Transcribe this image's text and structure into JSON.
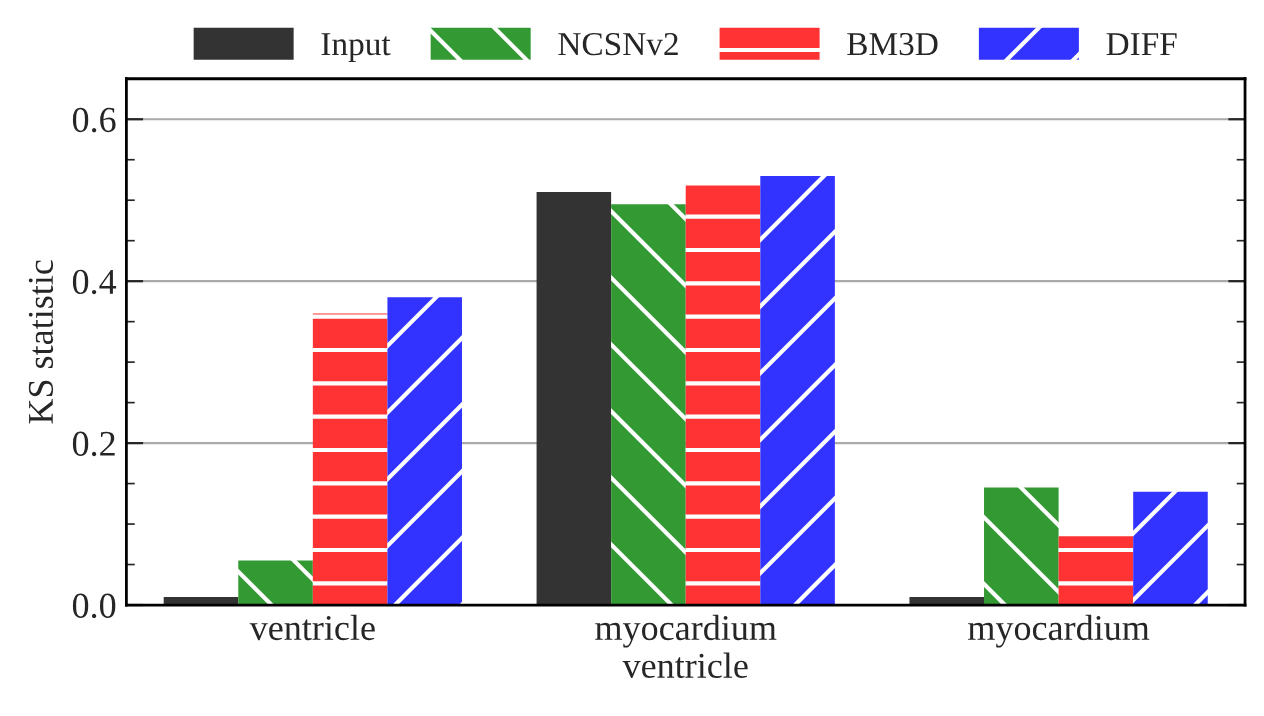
{
  "chart_data": {
    "type": "bar",
    "ylabel": "KS statistic",
    "categories": [
      "ventricle",
      "myocardium\nventricle",
      "myocardium"
    ],
    "series": [
      {
        "name": "Input",
        "color": "#333333",
        "values": [
          0.01,
          0.51,
          0.01
        ]
      },
      {
        "name": "NCSNv2",
        "color": "#339933",
        "values": [
          0.055,
          0.495,
          0.145
        ]
      },
      {
        "name": "BM3D",
        "color": "#ff3333",
        "values": [
          0.36,
          0.52,
          0.085
        ]
      },
      {
        "name": "DIFF",
        "color": "#3333ff",
        "values": [
          0.38,
          0.53,
          0.14
        ]
      }
    ],
    "ylim": [
      0,
      0.65
    ],
    "yticks": [
      {
        "value": 0,
        "label": "0.0"
      },
      {
        "value": 0.2,
        "label": "0.2"
      },
      {
        "value": 0.4,
        "label": "0.4"
      },
      {
        "value": 0.6,
        "label": "0.6"
      }
    ],
    "grid": "y",
    "legend": "top"
  }
}
